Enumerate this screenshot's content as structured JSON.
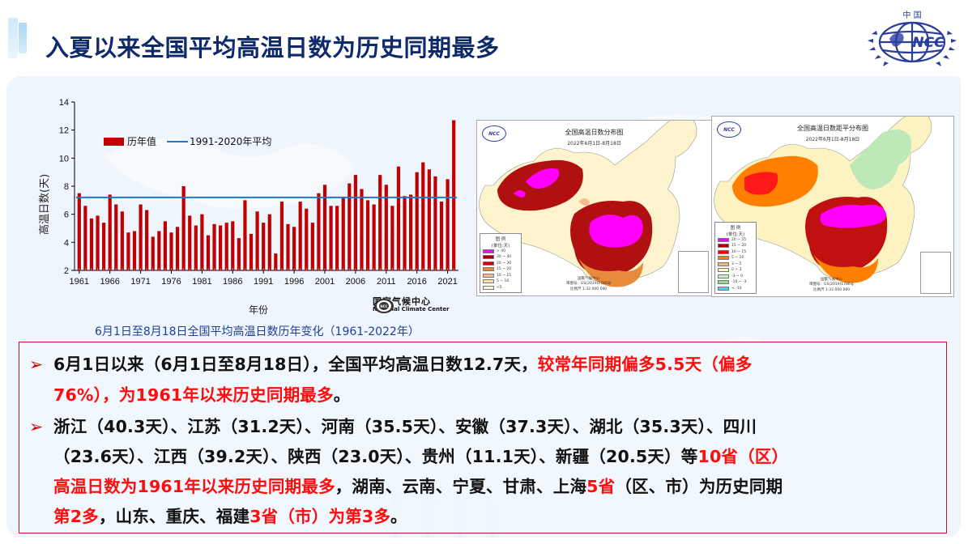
{
  "header": {
    "title": "入夏以来全国平均高温日数为历史同期最多",
    "logo": {
      "top_text": "中 国",
      "center_text": "NCC"
    }
  },
  "chart_section": {
    "ylabel": "高温日数(天)",
    "xlabel": "年份",
    "caption": "6月1日至8月18日全国平均高温日数历年变化（1961-2022年）",
    "source_logo": {
      "cn": "国家气候中心",
      "en": "National Climate Center"
    }
  },
  "chart_data": {
    "type": "bar",
    "title": "6月1日至8月18日全国平均高温日数历年变化（1961-2022年）",
    "xlabel": "年份",
    "ylabel": "高温日数(天)",
    "ylim": [
      2,
      14
    ],
    "yticks": [
      2,
      4,
      6,
      8,
      10,
      12,
      14
    ],
    "xticks": [
      "1961",
      "1966",
      "1971",
      "1976",
      "1981",
      "1986",
      "1991",
      "1996",
      "2001",
      "2006",
      "2011",
      "2016",
      "2021"
    ],
    "grid": false,
    "legend_position": "upper-left",
    "categories": [
      1961,
      1962,
      1963,
      1964,
      1965,
      1966,
      1967,
      1968,
      1969,
      1970,
      1971,
      1972,
      1973,
      1974,
      1975,
      1976,
      1977,
      1978,
      1979,
      1980,
      1981,
      1982,
      1983,
      1984,
      1985,
      1986,
      1987,
      1988,
      1989,
      1990,
      1991,
      1992,
      1993,
      1994,
      1995,
      1996,
      1997,
      1998,
      1999,
      2000,
      2001,
      2002,
      2003,
      2004,
      2005,
      2006,
      2007,
      2008,
      2009,
      2010,
      2011,
      2012,
      2013,
      2014,
      2015,
      2016,
      2017,
      2018,
      2019,
      2020,
      2021,
      2022
    ],
    "series": [
      {
        "name": "历年值",
        "type": "bar",
        "color": "#c00000",
        "values": [
          7.5,
          6.6,
          5.7,
          5.9,
          5.4,
          7.4,
          6.7,
          6.2,
          4.7,
          4.8,
          6.7,
          6.3,
          4.4,
          4.8,
          5.5,
          4.7,
          5.1,
          8.0,
          5.9,
          5.2,
          6.0,
          4.5,
          5.3,
          5.2,
          5.4,
          5.5,
          4.3,
          7.0,
          4.6,
          6.2,
          5.4,
          6.0,
          3.2,
          6.9,
          5.3,
          5.1,
          6.9,
          6.4,
          5.4,
          7.5,
          8.1,
          6.6,
          6.6,
          7.2,
          8.2,
          8.8,
          7.8,
          7.0,
          6.7,
          8.8,
          8.1,
          6.6,
          9.4,
          7.3,
          7.4,
          9.0,
          9.7,
          9.2,
          8.7,
          6.9,
          8.5,
          12.7
        ]
      },
      {
        "name": "1991-2020年平均",
        "type": "line",
        "color": "#1f78c8",
        "values_constant": 7.2
      }
    ]
  },
  "maps": [
    {
      "title": "全国高温日数分布图",
      "subtitle": "2022年6月1日-8月18日",
      "legend_title": "图 例",
      "legend_unit": "(单位:天)",
      "legend": [
        {
          "label": "> 40",
          "color": "#ff00ff"
        },
        {
          "label": "30 ~ 40",
          "color": "#a00000"
        },
        {
          "label": "20 ~ 30",
          "color": "#d60000"
        },
        {
          "label": "15 ~ 20",
          "color": "#e88a3c"
        },
        {
          "label": "10 ~ 15",
          "color": "#f7bc8c"
        },
        {
          "label": "5 ~ 10",
          "color": "#fde3a8"
        },
        {
          "label": "<5",
          "color": "#fdf7d5"
        }
      ],
      "footer": [
        "国家气候中心",
        "审图号：GS(2019)1786号",
        "比例尺 1:32 000 000"
      ]
    },
    {
      "title": "全国高温日数距平分布图",
      "subtitle": "2022年6月1日-8月18日",
      "legend_title": "图 例",
      "legend_unit": "(单位:天)",
      "legend": [
        {
          "label": "20 ~ 55",
          "color": "#ff00ff"
        },
        {
          "label": "15 ~ 20",
          "color": "#a00000"
        },
        {
          "label": "10 ~ 15",
          "color": "#ff0000"
        },
        {
          "label": "5 ~ 10",
          "color": "#ff8000"
        },
        {
          "label": "3 ~ 5",
          "color": "#f7b27a"
        },
        {
          "label": "0 ~ 3",
          "color": "#fdf3c2"
        },
        {
          "label": "-3 ~ 0",
          "color": "#c8f0c0"
        },
        {
          "label": "-10 ~ -3",
          "color": "#8ee08e"
        },
        {
          "label": "< -10",
          "color": "#20e8f0"
        }
      ],
      "footer": [
        "国家气候中心",
        "审图号：GS(2019)1786号",
        "比例尺 1:32 000 000"
      ]
    }
  ],
  "summary": {
    "bullet1": {
      "line1_black": "6月1日以来（6月1日至8月18日），全国平均高温日数12.7天，",
      "line1_red": "较常年同期偏多5.5天（偏多",
      "line2_red": "76%），为1961年以来历史同期最多",
      "line2_black": "。"
    },
    "bullet2": {
      "line1": "浙江（40.3天）、江苏（31.2天）、河南（35.5天）、安徽（37.3天）、湖北（35.3天）、四川",
      "line2_black": "（23.6天）、江西（39.2天）、陕西（23.0天）、贵州（11.1天）、新疆（20.5天）等",
      "line2_red": "10省（区）",
      "line3_red": "高温日数为1961年以来历史同期最多",
      "line3_black1": "，湖南、云南、宁夏、甘肃、上海",
      "line3_red2": "5省",
      "line3_black2": "（区、市）为历史同期",
      "line4_red": "第2多",
      "line4_black1": "，山东、重庆、福建",
      "line4_red2": "3省（市）为第3多",
      "line4_black2": "。"
    },
    "bullet_glyph": "➢"
  },
  "colors": {
    "title": "#0e2a6b",
    "bar": "#c00000",
    "avg_line": "#1f78c8",
    "highlight_red": "#ff0d0d",
    "box_border": "#c9121e",
    "caption": "#1e3f9a",
    "panel_bg": "#eef5fc"
  }
}
